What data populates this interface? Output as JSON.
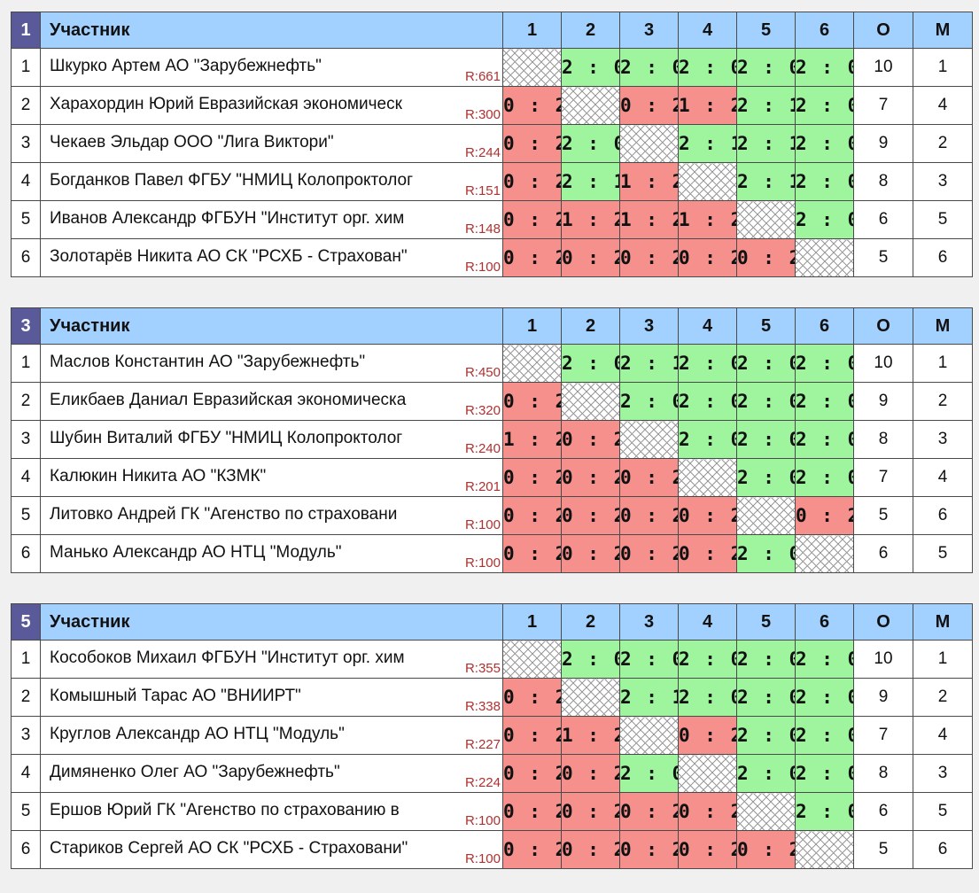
{
  "groups": [
    {
      "number": "1",
      "header": "Участник",
      "cols": [
        "1",
        "2",
        "3",
        "4",
        "5",
        "6"
      ],
      "o_label": "О",
      "m_label": "М",
      "rows": [
        {
          "n": "1",
          "name": "Шкурко Артем АО \"Зарубежнефть\"",
          "rating": "R:661",
          "cells": [
            "X",
            "2 : 0",
            "2 : 0",
            "2 : 0",
            "2 : 0",
            "2 : 0"
          ],
          "pts": "10",
          "place": "1"
        },
        {
          "n": "2",
          "name": "Харахордин Юрий Евразийская экономическ",
          "rating": "R:300",
          "cells": [
            "0 : 2",
            "X",
            "0 : 2",
            "1 : 2",
            "2 : 1",
            "2 : 0"
          ],
          "pts": "7",
          "place": "4"
        },
        {
          "n": "3",
          "name": "Чекаев Эльдар ООО \"Лига Виктори\"",
          "rating": "R:244",
          "cells": [
            "0 : 2",
            "2 : 0",
            "X",
            "2 : 1",
            "2 : 1",
            "2 : 0"
          ],
          "pts": "9",
          "place": "2"
        },
        {
          "n": "4",
          "name": "Богданков Павел ФГБУ \"НМИЦ Колопроктолог",
          "rating": "R:151",
          "cells": [
            "0 : 2",
            "2 : 1",
            "1 : 2",
            "X",
            "2 : 1",
            "2 : 0"
          ],
          "pts": "8",
          "place": "3"
        },
        {
          "n": "5",
          "name": "Иванов Александр ФГБУН \"Институт орг. хим",
          "rating": "R:148",
          "cells": [
            "0 : 2",
            "1 : 2",
            "1 : 2",
            "1 : 2",
            "X",
            "2 : 0"
          ],
          "pts": "6",
          "place": "5"
        },
        {
          "n": "6",
          "name": "Золотарёв Никита АО СК \"РСХБ - Страхован\"",
          "rating": "R:100",
          "cells": [
            "0 : 2",
            "0 : 2",
            "0 : 2",
            "0 : 2",
            "0 : 2",
            "X"
          ],
          "pts": "5",
          "place": "6"
        }
      ]
    },
    {
      "number": "3",
      "header": "Участник",
      "cols": [
        "1",
        "2",
        "3",
        "4",
        "5",
        "6"
      ],
      "o_label": "О",
      "m_label": "М",
      "rows": [
        {
          "n": "1",
          "name": "Маслов Константин АО \"Зарубежнефть\"",
          "rating": "R:450",
          "cells": [
            "X",
            "2 : 0",
            "2 : 1",
            "2 : 0",
            "2 : 0",
            "2 : 0"
          ],
          "pts": "10",
          "place": "1"
        },
        {
          "n": "2",
          "name": "Еликбаев Даниал Евразийская экономическа",
          "rating": "R:320",
          "cells": [
            "0 : 2",
            "X",
            "2 : 0",
            "2 : 0",
            "2 : 0",
            "2 : 0"
          ],
          "pts": "9",
          "place": "2"
        },
        {
          "n": "3",
          "name": "Шубин Виталий ФГБУ \"НМИЦ Колопроктолог",
          "rating": "R:240",
          "cells": [
            "1 : 2",
            "0 : 2",
            "X",
            "2 : 0",
            "2 : 0",
            "2 : 0"
          ],
          "pts": "8",
          "place": "3"
        },
        {
          "n": "4",
          "name": "Калюкин Никита АО \"КЗМК\"",
          "rating": "R:201",
          "cells": [
            "0 : 2",
            "0 : 2",
            "0 : 2",
            "X",
            "2 : 0",
            "2 : 0"
          ],
          "pts": "7",
          "place": "4"
        },
        {
          "n": "5",
          "name": "Литовко Андрей ГК \"Агенство по страховани",
          "rating": "R:100",
          "cells": [
            "0 : 2",
            "0 : 2",
            "0 : 2",
            "0 : 2",
            "X",
            "0 : 2"
          ],
          "pts": "5",
          "place": "6"
        },
        {
          "n": "6",
          "name": "Манько Александр АО НТЦ \"Модуль\"",
          "rating": "R:100",
          "cells": [
            "0 : 2",
            "0 : 2",
            "0 : 2",
            "0 : 2",
            "2 : 0",
            "X"
          ],
          "pts": "6",
          "place": "5"
        }
      ]
    },
    {
      "number": "5",
      "header": "Участник",
      "cols": [
        "1",
        "2",
        "3",
        "4",
        "5",
        "6"
      ],
      "o_label": "О",
      "m_label": "М",
      "rows": [
        {
          "n": "1",
          "name": "Кособоков Михаил ФГБУН \"Институт орг. хим",
          "rating": "R:355",
          "cells": [
            "X",
            "2 : 0",
            "2 : 0",
            "2 : 0",
            "2 : 0",
            "2 : 0"
          ],
          "pts": "10",
          "place": "1"
        },
        {
          "n": "2",
          "name": "Комышный Тарас АО \"ВНИИРТ\"",
          "rating": "R:338",
          "cells": [
            "0 : 2",
            "X",
            "2 : 1",
            "2 : 0",
            "2 : 0",
            "2 : 0"
          ],
          "pts": "9",
          "place": "2"
        },
        {
          "n": "3",
          "name": "Круглов Александр АО НТЦ \"Модуль\"",
          "rating": "R:227",
          "cells": [
            "0 : 2",
            "1 : 2",
            "X",
            "0 : 2",
            "2 : 0",
            "2 : 0"
          ],
          "pts": "7",
          "place": "4"
        },
        {
          "n": "4",
          "name": "Димяненко Олег АО \"Зарубежнефть\"",
          "rating": "R:224",
          "cells": [
            "0 : 2",
            "0 : 2",
            "2 : 0",
            "X",
            "2 : 0",
            "2 : 0"
          ],
          "pts": "8",
          "place": "3"
        },
        {
          "n": "5",
          "name": "Ершов Юрий ГК \"Агенство по страхованию в",
          "rating": "R:100",
          "cells": [
            "0 : 2",
            "0 : 2",
            "0 : 2",
            "0 : 2",
            "X",
            "2 : 0"
          ],
          "pts": "6",
          "place": "5"
        },
        {
          "n": "6",
          "name": "Стариков Сергей АО СК \"РСХБ - Страховани\"",
          "rating": "R:100",
          "cells": [
            "0 : 2",
            "0 : 2",
            "0 : 2",
            "0 : 2",
            "0 : 2",
            "X"
          ],
          "pts": "5",
          "place": "6"
        }
      ]
    }
  ]
}
